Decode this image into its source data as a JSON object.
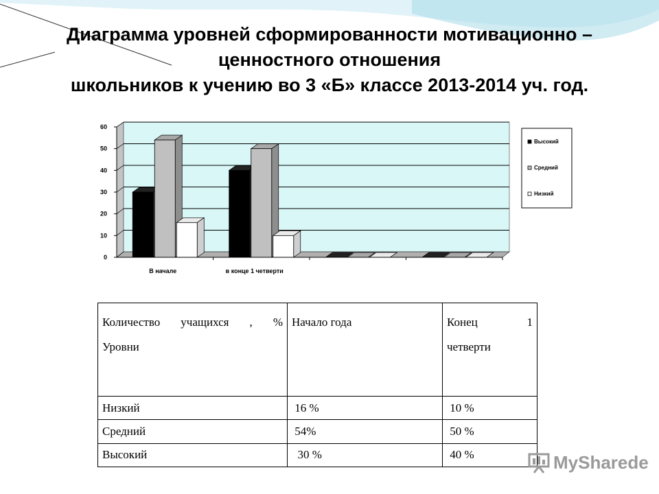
{
  "title": {
    "line1": "Диаграмма  уровней сформированности мотивационно –",
    "line2": "ценностного отношения",
    "line3": "школьников к учению во 3 «Б» классе 2013-2014 уч. год."
  },
  "chart_data": {
    "type": "bar",
    "title": "",
    "xlabel": "",
    "ylabel": "",
    "ylim": [
      0,
      60
    ],
    "yticks": [
      "0",
      "10",
      "20",
      "30",
      "40",
      "50",
      "60"
    ],
    "grid": true,
    "legend_position": "right",
    "categories": [
      "В начале",
      "в конце 1 четверти",
      "",
      ""
    ],
    "series": [
      {
        "name": "Высокий",
        "color": "#000000",
        "values": [
          30,
          40,
          0,
          0
        ]
      },
      {
        "name": "Средний",
        "color": "#c0c0c0",
        "values": [
          54,
          50,
          0,
          0
        ]
      },
      {
        "name": "Низкий",
        "color": "#ffffff",
        "values": [
          16,
          10,
          0,
          0
        ]
      }
    ],
    "colors": {
      "plot_back": "#d9f7f7",
      "wall": "#c4c4c4",
      "floor": "#b0b0b0"
    }
  },
  "table": {
    "header": {
      "col1_line1": "Количество учащихся  , %",
      "col1_line2": "Уровни",
      "col2": "Начало года",
      "col3_line1": "Конец 1",
      "col3_line2": "четверти"
    },
    "rows": [
      {
        "level": "Низкий",
        "start": " 16 %",
        "end": " 10 %"
      },
      {
        "level": "Средний",
        "start": " 54%",
        "end": " 50 %"
      },
      {
        "level": "Высокий",
        "start": "  30 %",
        "end": " 40 %"
      }
    ]
  },
  "watermark": {
    "text": "MySharede",
    "icon": "presentation-screen-icon"
  }
}
